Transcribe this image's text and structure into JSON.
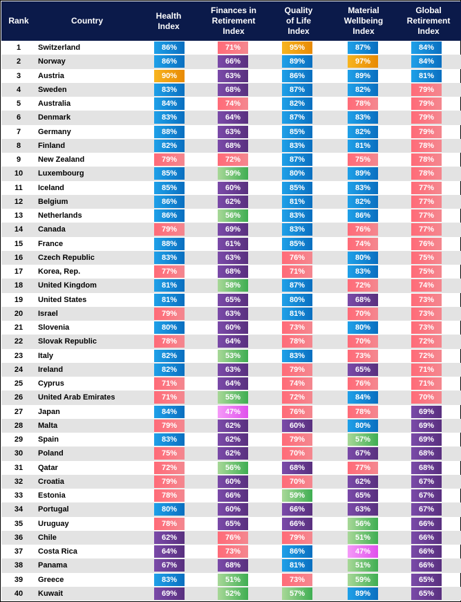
{
  "headers": [
    "Rank",
    "Country",
    "Health\nIndex",
    "Finances in\nRetirement\nIndex",
    "Quality\nof Life\nIndex",
    "Material\nWellbeing\nIndex",
    "Global\nRetirement\nIndex"
  ],
  "colors": {
    "header_bg": "#0b1a4a",
    "blue": "#0a84d0",
    "purple": "#6a3d9a",
    "red": "#f25a6a",
    "green": "#5bb85d",
    "orange": "#f0a010",
    "magenta": "#e860f0",
    "alt_row": "#e3e3e3"
  },
  "rows": [
    {
      "rank": "1",
      "country": "Switzerland",
      "health": "86%",
      "health_color": "blue",
      "finances": "71%",
      "finances_color": "red",
      "quality": "95%",
      "quality_color": "orange",
      "material": "87%",
      "material_color": "blue",
      "global": "84%",
      "global_color": "blue"
    },
    {
      "rank": "2",
      "country": "Norway",
      "health": "86%",
      "health_color": "blue",
      "finances": "66%",
      "finances_color": "purple",
      "quality": "89%",
      "quality_color": "blue",
      "material": "97%",
      "material_color": "orange",
      "global": "84%",
      "global_color": "blue"
    },
    {
      "rank": "3",
      "country": "Austria",
      "health": "90%",
      "health_color": "orange",
      "finances": "63%",
      "finances_color": "purple",
      "quality": "86%",
      "quality_color": "blue",
      "material": "89%",
      "material_color": "blue",
      "global": "81%",
      "global_color": "blue"
    },
    {
      "rank": "4",
      "country": "Sweden",
      "health": "83%",
      "health_color": "blue",
      "finances": "68%",
      "finances_color": "purple",
      "quality": "87%",
      "quality_color": "blue",
      "material": "82%",
      "material_color": "blue",
      "global": "79%",
      "global_color": "red"
    },
    {
      "rank": "5",
      "country": "Australia",
      "health": "84%",
      "health_color": "blue",
      "finances": "74%",
      "finances_color": "red",
      "quality": "82%",
      "quality_color": "blue",
      "material": "78%",
      "material_color": "red",
      "global": "79%",
      "global_color": "red"
    },
    {
      "rank": "6",
      "country": "Denmark",
      "health": "83%",
      "health_color": "blue",
      "finances": "64%",
      "finances_color": "purple",
      "quality": "87%",
      "quality_color": "blue",
      "material": "83%",
      "material_color": "blue",
      "global": "79%",
      "global_color": "red"
    },
    {
      "rank": "7",
      "country": "Germany",
      "health": "88%",
      "health_color": "blue",
      "finances": "63%",
      "finances_color": "purple",
      "quality": "85%",
      "quality_color": "blue",
      "material": "82%",
      "material_color": "blue",
      "global": "79%",
      "global_color": "red"
    },
    {
      "rank": "8",
      "country": "Finland",
      "health": "82%",
      "health_color": "blue",
      "finances": "68%",
      "finances_color": "purple",
      "quality": "83%",
      "quality_color": "blue",
      "material": "81%",
      "material_color": "blue",
      "global": "78%",
      "global_color": "red"
    },
    {
      "rank": "9",
      "country": "New Zealand",
      "health": "79%",
      "health_color": "red",
      "finances": "72%",
      "finances_color": "red",
      "quality": "87%",
      "quality_color": "blue",
      "material": "75%",
      "material_color": "red",
      "global": "78%",
      "global_color": "red"
    },
    {
      "rank": "10",
      "country": "Luxembourg",
      "health": "85%",
      "health_color": "blue",
      "finances": "59%",
      "finances_color": "green",
      "quality": "80%",
      "quality_color": "blue",
      "material": "89%",
      "material_color": "blue",
      "global": "78%",
      "global_color": "red"
    },
    {
      "rank": "11",
      "country": "Iceland",
      "health": "85%",
      "health_color": "blue",
      "finances": "60%",
      "finances_color": "purple",
      "quality": "85%",
      "quality_color": "blue",
      "material": "83%",
      "material_color": "blue",
      "global": "77%",
      "global_color": "red"
    },
    {
      "rank": "12",
      "country": "Belgium",
      "health": "86%",
      "health_color": "blue",
      "finances": "62%",
      "finances_color": "purple",
      "quality": "81%",
      "quality_color": "blue",
      "material": "82%",
      "material_color": "blue",
      "global": "77%",
      "global_color": "red"
    },
    {
      "rank": "13",
      "country": "Netherlands",
      "health": "86%",
      "health_color": "blue",
      "finances": "56%",
      "finances_color": "green",
      "quality": "83%",
      "quality_color": "blue",
      "material": "86%",
      "material_color": "blue",
      "global": "77%",
      "global_color": "red"
    },
    {
      "rank": "14",
      "country": "Canada",
      "health": "79%",
      "health_color": "red",
      "finances": "69%",
      "finances_color": "purple",
      "quality": "83%",
      "quality_color": "blue",
      "material": "76%",
      "material_color": "red",
      "global": "77%",
      "global_color": "red"
    },
    {
      "rank": "15",
      "country": "France",
      "health": "88%",
      "health_color": "blue",
      "finances": "61%",
      "finances_color": "purple",
      "quality": "85%",
      "quality_color": "blue",
      "material": "74%",
      "material_color": "red",
      "global": "76%",
      "global_color": "red"
    },
    {
      "rank": "16",
      "country": "Czech Republic",
      "health": "83%",
      "health_color": "blue",
      "finances": "63%",
      "finances_color": "purple",
      "quality": "76%",
      "quality_color": "red",
      "material": "80%",
      "material_color": "blue",
      "global": "75%",
      "global_color": "red"
    },
    {
      "rank": "17",
      "country": "Korea, Rep.",
      "health": "77%",
      "health_color": "red",
      "finances": "68%",
      "finances_color": "purple",
      "quality": "71%",
      "quality_color": "red",
      "material": "83%",
      "material_color": "blue",
      "global": "75%",
      "global_color": "red"
    },
    {
      "rank": "18",
      "country": "United Kingdom",
      "health": "81%",
      "health_color": "blue",
      "finances": "58%",
      "finances_color": "green",
      "quality": "87%",
      "quality_color": "blue",
      "material": "72%",
      "material_color": "red",
      "global": "74%",
      "global_color": "red"
    },
    {
      "rank": "19",
      "country": "United States",
      "health": "81%",
      "health_color": "blue",
      "finances": "65%",
      "finances_color": "purple",
      "quality": "80%",
      "quality_color": "blue",
      "material": "68%",
      "material_color": "purple",
      "global": "73%",
      "global_color": "red"
    },
    {
      "rank": "20",
      "country": "Israel",
      "health": "79%",
      "health_color": "red",
      "finances": "63%",
      "finances_color": "purple",
      "quality": "81%",
      "quality_color": "blue",
      "material": "70%",
      "material_color": "red",
      "global": "73%",
      "global_color": "red"
    },
    {
      "rank": "21",
      "country": "Slovenia",
      "health": "80%",
      "health_color": "blue",
      "finances": "60%",
      "finances_color": "purple",
      "quality": "73%",
      "quality_color": "red",
      "material": "80%",
      "material_color": "blue",
      "global": "73%",
      "global_color": "red"
    },
    {
      "rank": "22",
      "country": "Slovak Republic",
      "health": "78%",
      "health_color": "red",
      "finances": "64%",
      "finances_color": "purple",
      "quality": "78%",
      "quality_color": "red",
      "material": "70%",
      "material_color": "red",
      "global": "72%",
      "global_color": "red"
    },
    {
      "rank": "23",
      "country": "Italy",
      "health": "82%",
      "health_color": "blue",
      "finances": "53%",
      "finances_color": "green",
      "quality": "83%",
      "quality_color": "blue",
      "material": "73%",
      "material_color": "red",
      "global": "72%",
      "global_color": "red"
    },
    {
      "rank": "24",
      "country": "Ireland",
      "health": "82%",
      "health_color": "blue",
      "finances": "63%",
      "finances_color": "purple",
      "quality": "79%",
      "quality_color": "red",
      "material": "65%",
      "material_color": "purple",
      "global": "71%",
      "global_color": "red"
    },
    {
      "rank": "25",
      "country": "Cyprus",
      "health": "71%",
      "health_color": "red",
      "finances": "64%",
      "finances_color": "purple",
      "quality": "74%",
      "quality_color": "red",
      "material": "76%",
      "material_color": "red",
      "global": "71%",
      "global_color": "red"
    },
    {
      "rank": "26",
      "country": "United Arab Emirates",
      "health": "71%",
      "health_color": "red",
      "finances": "55%",
      "finances_color": "green",
      "quality": "72%",
      "quality_color": "red",
      "material": "84%",
      "material_color": "blue",
      "global": "70%",
      "global_color": "red"
    },
    {
      "rank": "27",
      "country": "Japan",
      "health": "84%",
      "health_color": "blue",
      "finances": "47%",
      "finances_color": "magenta",
      "quality": "76%",
      "quality_color": "red",
      "material": "78%",
      "material_color": "red",
      "global": "69%",
      "global_color": "purple"
    },
    {
      "rank": "28",
      "country": "Malta",
      "health": "79%",
      "health_color": "red",
      "finances": "62%",
      "finances_color": "purple",
      "quality": "60%",
      "quality_color": "purple",
      "material": "80%",
      "material_color": "blue",
      "global": "69%",
      "global_color": "purple"
    },
    {
      "rank": "29",
      "country": "Spain",
      "health": "83%",
      "health_color": "blue",
      "finances": "62%",
      "finances_color": "purple",
      "quality": "79%",
      "quality_color": "red",
      "material": "57%",
      "material_color": "green",
      "global": "69%",
      "global_color": "purple"
    },
    {
      "rank": "30",
      "country": "Poland",
      "health": "75%",
      "health_color": "red",
      "finances": "62%",
      "finances_color": "purple",
      "quality": "70%",
      "quality_color": "red",
      "material": "67%",
      "material_color": "purple",
      "global": "68%",
      "global_color": "purple"
    },
    {
      "rank": "31",
      "country": "Qatar",
      "health": "72%",
      "health_color": "red",
      "finances": "56%",
      "finances_color": "green",
      "quality": "68%",
      "quality_color": "purple",
      "material": "77%",
      "material_color": "red",
      "global": "68%",
      "global_color": "purple"
    },
    {
      "rank": "32",
      "country": "Croatia",
      "health": "79%",
      "health_color": "red",
      "finances": "60%",
      "finances_color": "purple",
      "quality": "70%",
      "quality_color": "red",
      "material": "62%",
      "material_color": "purple",
      "global": "67%",
      "global_color": "purple"
    },
    {
      "rank": "33",
      "country": "Estonia",
      "health": "78%",
      "health_color": "red",
      "finances": "66%",
      "finances_color": "purple",
      "quality": "59%",
      "quality_color": "green",
      "material": "65%",
      "material_color": "purple",
      "global": "67%",
      "global_color": "purple"
    },
    {
      "rank": "34",
      "country": "Portugal",
      "health": "80%",
      "health_color": "blue",
      "finances": "60%",
      "finances_color": "purple",
      "quality": "66%",
      "quality_color": "purple",
      "material": "63%",
      "material_color": "purple",
      "global": "67%",
      "global_color": "purple"
    },
    {
      "rank": "35",
      "country": "Uruguay",
      "health": "78%",
      "health_color": "red",
      "finances": "65%",
      "finances_color": "purple",
      "quality": "66%",
      "quality_color": "purple",
      "material": "56%",
      "material_color": "green",
      "global": "66%",
      "global_color": "purple"
    },
    {
      "rank": "36",
      "country": "Chile",
      "health": "62%",
      "health_color": "purple",
      "finances": "76%",
      "finances_color": "red",
      "quality": "79%",
      "quality_color": "red",
      "material": "51%",
      "material_color": "green",
      "global": "66%",
      "global_color": "purple"
    },
    {
      "rank": "37",
      "country": "Costa Rica",
      "health": "64%",
      "health_color": "purple",
      "finances": "73%",
      "finances_color": "red",
      "quality": "86%",
      "quality_color": "blue",
      "material": "47%",
      "material_color": "magenta",
      "global": "66%",
      "global_color": "purple"
    },
    {
      "rank": "38",
      "country": "Panama",
      "health": "67%",
      "health_color": "purple",
      "finances": "68%",
      "finances_color": "purple",
      "quality": "81%",
      "quality_color": "blue",
      "material": "51%",
      "material_color": "green",
      "global": "66%",
      "global_color": "purple"
    },
    {
      "rank": "39",
      "country": "Greece",
      "health": "83%",
      "health_color": "blue",
      "finances": "51%",
      "finances_color": "green",
      "quality": "73%",
      "quality_color": "red",
      "material": "59%",
      "material_color": "green",
      "global": "65%",
      "global_color": "purple"
    },
    {
      "rank": "40",
      "country": "Kuwait",
      "health": "69%",
      "health_color": "purple",
      "finances": "52%",
      "finances_color": "green",
      "quality": "57%",
      "quality_color": "green",
      "material": "89%",
      "material_color": "blue",
      "global": "65%",
      "global_color": "purple"
    }
  ]
}
